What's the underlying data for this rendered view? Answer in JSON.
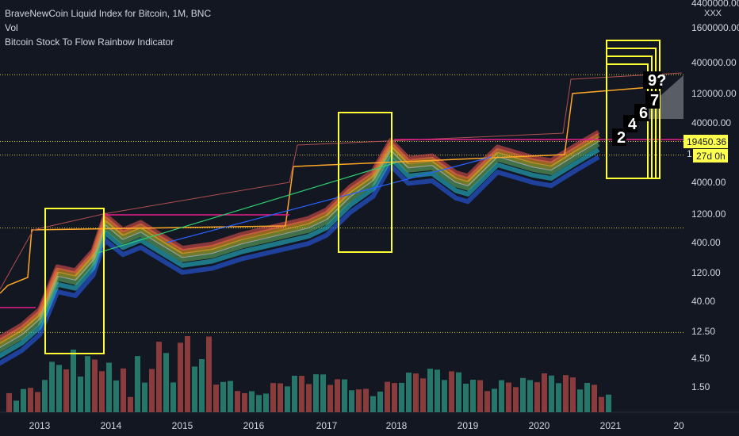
{
  "legend": {
    "title": "BraveNewCoin Liquid Index for Bitcoin, 1M, BNC",
    "line2": "Vol",
    "line3": "Bitcoin Stock To Flow Rainbow Indicator"
  },
  "chart_data": {
    "type": "candlestick",
    "y_scale": "log",
    "y_ticks": [
      "4400000.00",
      "1600000.00",
      "400000.00",
      "120000.00",
      "40000.00",
      "4000.00",
      "1200.00",
      "400.00",
      "120.00",
      "40.00",
      "12.50",
      "4.50",
      "1.50"
    ],
    "y_tick_values": [
      4400000,
      1600000,
      400000,
      120000,
      40000,
      4000,
      1200,
      400,
      120,
      40,
      12.5,
      4.5,
      1.5
    ],
    "top_label": "XXX",
    "x_ticks": [
      "2013",
      "2014",
      "2015",
      "2016",
      "2017",
      "2018",
      "2019",
      "2020",
      "2021",
      "20"
    ],
    "price_badge": {
      "value": "19450.36",
      "countdown": "27d 0h"
    },
    "truncated_axis_label": "1",
    "stock_to_flow_annotations": [
      "2",
      "4",
      "6",
      "7",
      "9?"
    ],
    "dotted_levels": [
      250000,
      19450.36,
      11500,
      700,
      12
    ],
    "price_series": [
      {
        "date": "2012-06",
        "price": 6.5
      },
      {
        "date": "2012-10",
        "price": 11
      },
      {
        "date": "2013-01",
        "price": 20
      },
      {
        "date": "2013-04",
        "price": 105
      },
      {
        "date": "2013-07",
        "price": 90
      },
      {
        "date": "2013-10",
        "price": 200
      },
      {
        "date": "2013-12",
        "price": 800
      },
      {
        "date": "2014-03",
        "price": 450
      },
      {
        "date": "2014-06",
        "price": 600
      },
      {
        "date": "2014-09",
        "price": 390
      },
      {
        "date": "2015-01",
        "price": 220
      },
      {
        "date": "2015-06",
        "price": 260
      },
      {
        "date": "2015-11",
        "price": 380
      },
      {
        "date": "2016-05",
        "price": 530
      },
      {
        "date": "2016-10",
        "price": 700
      },
      {
        "date": "2017-01",
        "price": 970
      },
      {
        "date": "2017-05",
        "price": 2300
      },
      {
        "date": "2017-09",
        "price": 4300
      },
      {
        "date": "2017-12",
        "price": 14000
      },
      {
        "date": "2018-03",
        "price": 7000
      },
      {
        "date": "2018-07",
        "price": 7700
      },
      {
        "date": "2018-11",
        "price": 4000
      },
      {
        "date": "2019-01",
        "price": 3500
      },
      {
        "date": "2019-06",
        "price": 10800
      },
      {
        "date": "2019-12",
        "price": 7200
      },
      {
        "date": "2020-03",
        "price": 6400
      },
      {
        "date": "2020-07",
        "price": 11300
      },
      {
        "date": "2020-11",
        "price": 19450.36
      }
    ],
    "volume": {
      "colors": {
        "up": "#26776a",
        "down": "#8a3b3b"
      }
    }
  },
  "colors": {
    "background": "#131722",
    "text": "#d1d4dc",
    "highlight_box": "#ffff33",
    "level_line": "#c7c43a",
    "up_candle": "#26a69a",
    "down_candle": "#ef5350",
    "pink_line": "#e91e8c",
    "badge_bg": "#ffff4d"
  }
}
